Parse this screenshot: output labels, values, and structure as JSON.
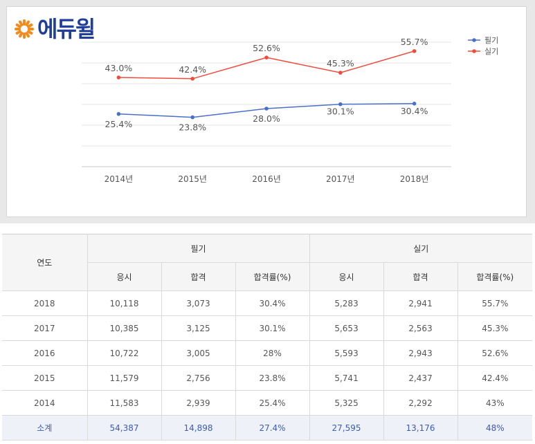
{
  "logo": {
    "text": "에듀윌"
  },
  "colors": {
    "written": "#4a6fc9",
    "practical": "#f04a3c",
    "logo": "#1f3f9a",
    "logo_mark": "#f28a1c",
    "total_text": "#3c5bb5"
  },
  "chart_data": {
    "type": "line",
    "categories": [
      "2014년",
      "2015년",
      "2016년",
      "2017년",
      "2018년"
    ],
    "series": [
      {
        "name": "필기",
        "values": [
          25.4,
          23.8,
          28.0,
          30.1,
          30.4
        ],
        "labels": [
          "25.4%",
          "23.8%",
          "28.0%",
          "30.1%",
          "30.4%"
        ]
      },
      {
        "name": "실기",
        "values": [
          43.0,
          42.4,
          52.6,
          45.3,
          55.7
        ],
        "labels": [
          "43.0%",
          "42.4%",
          "52.6%",
          "45.3%",
          "55.7%"
        ]
      }
    ],
    "ylim": [
      0,
      60
    ],
    "grid": true,
    "legend": "top-right",
    "xlabel": "",
    "ylabel": ""
  },
  "table": {
    "header_year": "연도",
    "group_written": "필기",
    "group_practical": "실기",
    "sub_headers": [
      "응시",
      "합격",
      "합격률(%)",
      "응시",
      "합격",
      "합격률(%)"
    ],
    "rows": [
      [
        "2018",
        "10,118",
        "3,073",
        "30.4%",
        "5,283",
        "2,941",
        "55.7%"
      ],
      [
        "2017",
        "10,385",
        "3,125",
        "30.1%",
        "5,653",
        "2,563",
        "45.3%"
      ],
      [
        "2016",
        "10,722",
        "3,005",
        "28%",
        "5,593",
        "2,943",
        "52.6%"
      ],
      [
        "2015",
        "11,579",
        "2,756",
        "23.8%",
        "5,741",
        "2,437",
        "42.4%"
      ],
      [
        "2014",
        "11,583",
        "2,939",
        "25.4%",
        "5,325",
        "2,292",
        "43%"
      ]
    ],
    "total": [
      "소계",
      "54,387",
      "14,898",
      "27.4%",
      "27,595",
      "13,176",
      "48%"
    ]
  }
}
